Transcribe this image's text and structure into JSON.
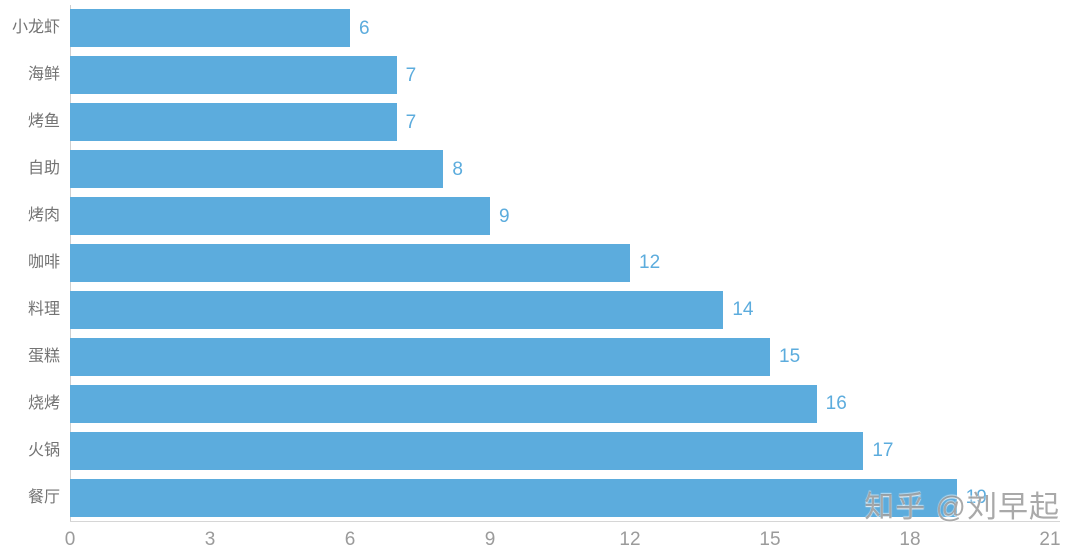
{
  "chart_data": {
    "type": "bar",
    "orientation": "horizontal",
    "title": "",
    "xlabel": "",
    "ylabel": "",
    "categories": [
      "小龙虾",
      "海鲜",
      "烤鱼",
      "自助",
      "烤肉",
      "咖啡",
      "料理",
      "蛋糕",
      "烧烤",
      "火锅",
      "餐厅"
    ],
    "values": [
      6,
      7,
      7,
      8,
      9,
      12,
      14,
      15,
      16,
      17,
      19
    ],
    "value_labels": [
      "6",
      "7",
      "7",
      "8",
      "9",
      "12",
      "14",
      "15",
      "16",
      "17",
      "19"
    ],
    "xlim": [
      0,
      21
    ],
    "x_ticks": [
      "0",
      "3",
      "6",
      "9",
      "12",
      "15",
      "18",
      "21"
    ],
    "grid": false,
    "legend": false,
    "colors": {
      "bar": "#5cacdd",
      "value_label": "#5cacdd",
      "category_label": "#737373",
      "tick_label": "#9b9b9b",
      "axis_line": "#d4d4d4"
    }
  },
  "watermark": {
    "text": "知乎 @刘早起"
  }
}
